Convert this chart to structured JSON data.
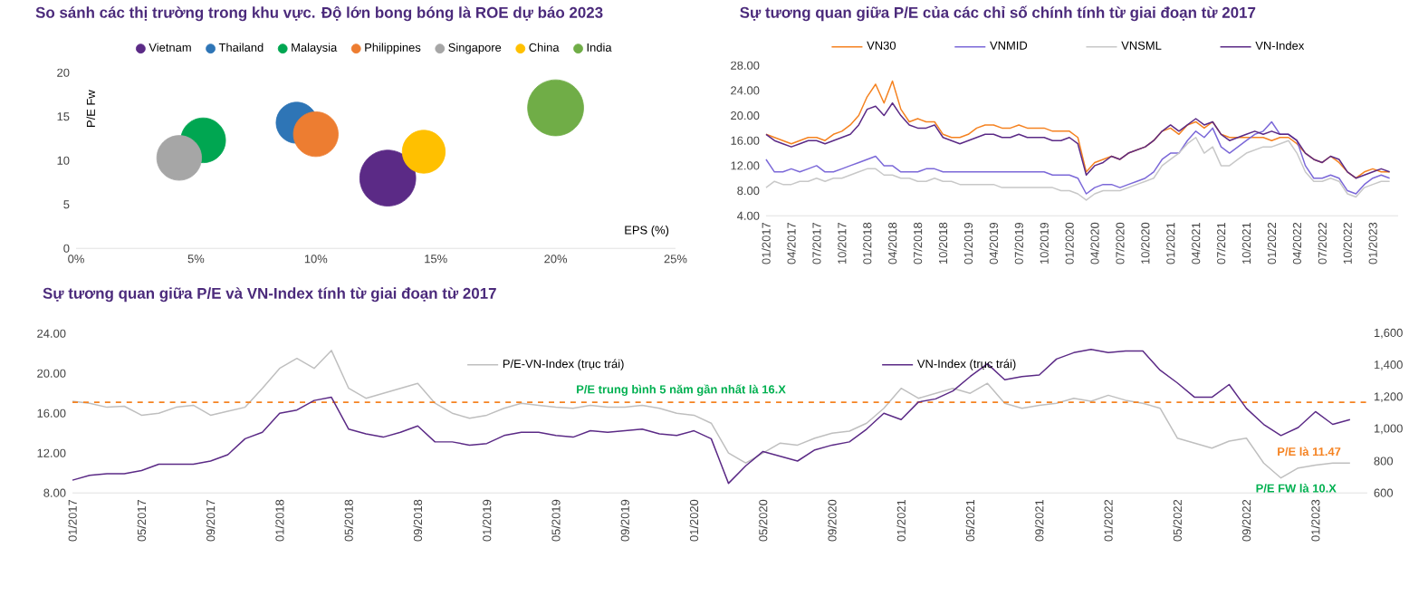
{
  "chart_data": [
    {
      "type": "bubble",
      "title": "So sánh các thị trường trong khu vực. Độ lớn bong bóng là ROE dự báo 2023",
      "xlabel": "EPS (%)",
      "ylabel": "P/E Fw",
      "xlim": [
        0,
        25
      ],
      "ylim": [
        0,
        20
      ],
      "xticks": [
        {
          "value": 0,
          "label": "0%"
        },
        {
          "value": 5,
          "label": "5%"
        },
        {
          "value": 10,
          "label": "10%"
        },
        {
          "value": 15,
          "label": "15%"
        },
        {
          "value": 20,
          "label": "20%"
        },
        {
          "value": 25,
          "label": "25%"
        }
      ],
      "yticks": [
        0,
        5,
        10,
        15,
        20
      ],
      "legend": "top",
      "series": [
        {
          "name": "Vietnam",
          "color": "#5b2a86",
          "x": [
            13
          ],
          "values": [
            8
          ],
          "sizes": [
            1
          ]
        },
        {
          "name": "Thailand",
          "color": "#2e75b6",
          "x": [
            9.2
          ],
          "values": [
            14.3
          ],
          "sizes": [
            0.54
          ]
        },
        {
          "name": "Malaysia",
          "color": "#00a651",
          "x": [
            5.3
          ],
          "values": [
            12.3
          ],
          "sizes": [
            0.64
          ]
        },
        {
          "name": "Philippines",
          "color": "#ed7d31",
          "x": [
            10
          ],
          "values": [
            13
          ],
          "sizes": [
            0.64
          ]
        },
        {
          "name": "Singapore",
          "color": "#a6a6a6",
          "x": [
            4.3
          ],
          "values": [
            10.3
          ],
          "sizes": [
            0.64
          ]
        },
        {
          "name": "China",
          "color": "#ffc000",
          "x": [
            14.5
          ],
          "values": [
            11
          ],
          "sizes": [
            0.59
          ]
        },
        {
          "name": "India",
          "color": "#70ad47",
          "x": [
            20
          ],
          "values": [
            16
          ],
          "sizes": [
            1
          ]
        }
      ]
    },
    {
      "type": "line",
      "title": "Sự tương quan giữa P/E của các chỉ số chính tính từ giai đoạn từ 2017",
      "xlim": [
        "2017-01",
        "2023-04"
      ],
      "ylim": [
        4,
        28
      ],
      "legend": "top",
      "yticks": [
        {
          "value": 4,
          "label": "4.00"
        },
        {
          "value": 8,
          "label": "8.00"
        },
        {
          "value": 12,
          "label": "12.00"
        },
        {
          "value": 16,
          "label": "16.00"
        },
        {
          "value": 20,
          "label": "20.00"
        },
        {
          "value": 24,
          "label": "24.00"
        },
        {
          "value": 28,
          "label": "28.00"
        }
      ],
      "xticks": [
        {
          "value": "2017-01",
          "label": "01/2017"
        },
        {
          "value": "2017-04",
          "label": "04/2017"
        },
        {
          "value": "2017-07",
          "label": "07/2017"
        },
        {
          "value": "2017-10",
          "label": "10/2017"
        },
        {
          "value": "2018-01",
          "label": "01/2018"
        },
        {
          "value": "2018-04",
          "label": "04/2018"
        },
        {
          "value": "2018-07",
          "label": "07/2018"
        },
        {
          "value": "2018-10",
          "label": "10/2018"
        },
        {
          "value": "2019-01",
          "label": "01/2019"
        },
        {
          "value": "2019-04",
          "label": "04/2019"
        },
        {
          "value": "2019-07",
          "label": "07/2019"
        },
        {
          "value": "2019-10",
          "label": "10/2019"
        },
        {
          "value": "2020-01",
          "label": "01/2020"
        },
        {
          "value": "2020-04",
          "label": "04/2020"
        },
        {
          "value": "2020-07",
          "label": "07/2020"
        },
        {
          "value": "2020-10",
          "label": "10/2020"
        },
        {
          "value": "2021-01",
          "label": "01/2021"
        },
        {
          "value": "2021-04",
          "label": "04/2021"
        },
        {
          "value": "2021-07",
          "label": "07/2021"
        },
        {
          "value": "2021-10",
          "label": "10/2021"
        },
        {
          "value": "2022-01",
          "label": "01/2022"
        },
        {
          "value": "2022-04",
          "label": "04/2022"
        },
        {
          "value": "2022-07",
          "label": "07/2022"
        },
        {
          "value": "2022-10",
          "label": "10/2022"
        },
        {
          "value": "2023-01",
          "label": "01/2023"
        }
      ],
      "x": [
        "2017-01",
        "2017-02",
        "2017-03",
        "2017-04",
        "2017-05",
        "2017-06",
        "2017-07",
        "2017-08",
        "2017-09",
        "2017-10",
        "2017-11",
        "2017-12",
        "2018-01",
        "2018-02",
        "2018-03",
        "2018-04",
        "2018-05",
        "2018-06",
        "2018-07",
        "2018-08",
        "2018-09",
        "2018-10",
        "2018-11",
        "2018-12",
        "2019-01",
        "2019-02",
        "2019-03",
        "2019-04",
        "2019-05",
        "2019-06",
        "2019-07",
        "2019-08",
        "2019-09",
        "2019-10",
        "2019-11",
        "2019-12",
        "2020-01",
        "2020-02",
        "2020-03",
        "2020-04",
        "2020-05",
        "2020-06",
        "2020-07",
        "2020-08",
        "2020-09",
        "2020-10",
        "2020-11",
        "2020-12",
        "2021-01",
        "2021-02",
        "2021-03",
        "2021-04",
        "2021-05",
        "2021-06",
        "2021-07",
        "2021-08",
        "2021-09",
        "2021-10",
        "2021-11",
        "2021-12",
        "2022-01",
        "2022-02",
        "2022-03",
        "2022-04",
        "2022-05",
        "2022-06",
        "2022-07",
        "2022-08",
        "2022-09",
        "2022-10",
        "2022-11",
        "2022-12",
        "2023-01",
        "2023-02",
        "2023-03"
      ],
      "series": [
        {
          "name": "VN30",
          "color": "#f58220",
          "values": [
            17,
            16.5,
            16,
            15.5,
            16,
            16.5,
            16.5,
            16,
            17,
            17.5,
            18.5,
            20,
            23,
            25,
            22,
            25.5,
            21,
            19,
            19.5,
            19,
            19,
            17,
            16.5,
            16.5,
            17,
            18,
            18.5,
            18.5,
            18,
            18,
            18.5,
            18,
            18,
            18,
            17.5,
            17.5,
            17.5,
            16.5,
            11,
            12.5,
            13,
            13.5,
            13,
            14,
            14.5,
            15,
            16,
            17.5,
            18,
            17,
            18.5,
            19,
            18,
            19,
            17,
            16.5,
            16.5,
            16.5,
            16.5,
            16.5,
            16,
            16.5,
            16.5,
            15.5,
            14,
            13,
            12.5,
            13.5,
            12.5,
            11,
            10,
            11,
            11.5,
            11,
            11
          ]
        },
        {
          "name": "VNMID",
          "color": "#7b68d8",
          "values": [
            13,
            11,
            11,
            11.5,
            11,
            11.5,
            12,
            11,
            11,
            11.5,
            12,
            12.5,
            13,
            13.5,
            12,
            12,
            11,
            11,
            11,
            11.5,
            11.5,
            11,
            11,
            11,
            11,
            11,
            11,
            11,
            11,
            11,
            11,
            11,
            11,
            11,
            10.5,
            10.5,
            10.5,
            10,
            7.5,
            8.5,
            9,
            9,
            8.5,
            9,
            9.5,
            10,
            11,
            13,
            14,
            14,
            16,
            17.5,
            16.5,
            18,
            15,
            14,
            15,
            16,
            17,
            17.5,
            19,
            17,
            17,
            16,
            12,
            10,
            10,
            10.5,
            10,
            8,
            7.5,
            9,
            10,
            10.5,
            10
          ]
        },
        {
          "name": "VNSML",
          "color": "#c8c8c8",
          "values": [
            8.5,
            9.5,
            9,
            9,
            9.5,
            9.5,
            10,
            9.5,
            10,
            10,
            10.5,
            11,
            11.5,
            11.5,
            10.5,
            10.5,
            10,
            10,
            9.5,
            9.5,
            10,
            9.5,
            9.5,
            9,
            9,
            9,
            9,
            9,
            8.5,
            8.5,
            8.5,
            8.5,
            8.5,
            8.5,
            8.5,
            8,
            8,
            7.5,
            6.5,
            7.5,
            8,
            8,
            8,
            8.5,
            9,
            9.5,
            10,
            12,
            13,
            14,
            15.5,
            16.5,
            14,
            15,
            12,
            12,
            13,
            14,
            14.5,
            15,
            15,
            15.5,
            16,
            14,
            11,
            9.5,
            9.5,
            10,
            9.5,
            7.5,
            7,
            8.5,
            9,
            9.5,
            9.5
          ]
        },
        {
          "name": "VN-Index",
          "color": "#5b2a86",
          "values": [
            17,
            16,
            15.5,
            15,
            15.5,
            16,
            16,
            15.5,
            16,
            16.5,
            17,
            18.5,
            21,
            21.5,
            20,
            22,
            20,
            18.5,
            18,
            18,
            18.5,
            16.5,
            16,
            15.5,
            16,
            16.5,
            17,
            17,
            16.5,
            16.5,
            17,
            16.5,
            16.5,
            16.5,
            16,
            16,
            16.5,
            15.5,
            10.5,
            12,
            12.5,
            13.5,
            13,
            14,
            14.5,
            15,
            16,
            17.5,
            18.5,
            17.5,
            18.5,
            19.5,
            18.5,
            19,
            17,
            16,
            16.5,
            17,
            17.5,
            17,
            17.5,
            17,
            17,
            16,
            14,
            13,
            12.5,
            13.5,
            13,
            11,
            10,
            10.5,
            11,
            11.5,
            11
          ]
        }
      ]
    },
    {
      "type": "line",
      "title": "Sự tương quan giữa P/E và VN-Index tính từ giai đoạn từ 2017",
      "xlim": [
        "2017-01",
        "2023-04"
      ],
      "ylim": [
        8,
        24
      ],
      "y2lim": [
        600,
        1600
      ],
      "legend": "top",
      "yticks": [
        {
          "value": 8,
          "label": "8.00"
        },
        {
          "value": 12,
          "label": "12.00"
        },
        {
          "value": 16,
          "label": "16.00"
        },
        {
          "value": 20,
          "label": "20.00"
        },
        {
          "value": 24,
          "label": "24.00"
        }
      ],
      "y2ticks": [
        600,
        800,
        {
          "value": 1000,
          "label": "1,000"
        },
        {
          "value": 1200,
          "label": "1,200"
        },
        {
          "value": 1400,
          "label": "1,400"
        },
        {
          "value": 1600,
          "label": "1,600"
        }
      ],
      "xticks": [
        {
          "value": "2017-01",
          "label": "01/2017"
        },
        {
          "value": "2017-05",
          "label": "05/2017"
        },
        {
          "value": "2017-09",
          "label": "09/2017"
        },
        {
          "value": "2018-01",
          "label": "01/2018"
        },
        {
          "value": "2018-05",
          "label": "05/2018"
        },
        {
          "value": "2018-09",
          "label": "09/2018"
        },
        {
          "value": "2019-01",
          "label": "01/2019"
        },
        {
          "value": "2019-05",
          "label": "05/2019"
        },
        {
          "value": "2019-09",
          "label": "09/2019"
        },
        {
          "value": "2020-01",
          "label": "01/2020"
        },
        {
          "value": "2020-05",
          "label": "05/2020"
        },
        {
          "value": "2020-09",
          "label": "09/2020"
        },
        {
          "value": "2021-01",
          "label": "01/2021"
        },
        {
          "value": "2021-05",
          "label": "05/2021"
        },
        {
          "value": "2021-09",
          "label": "09/2021"
        },
        {
          "value": "2022-01",
          "label": "01/2022"
        },
        {
          "value": "2022-05",
          "label": "05/2022"
        },
        {
          "value": "2022-09",
          "label": "09/2022"
        },
        {
          "value": "2023-01",
          "label": "01/2023"
        }
      ],
      "x": [
        "2017-01",
        "2017-02",
        "2017-03",
        "2017-04",
        "2017-05",
        "2017-06",
        "2017-07",
        "2017-08",
        "2017-09",
        "2017-10",
        "2017-11",
        "2017-12",
        "2018-01",
        "2018-02",
        "2018-03",
        "2018-04",
        "2018-05",
        "2018-06",
        "2018-07",
        "2018-08",
        "2018-09",
        "2018-10",
        "2018-11",
        "2018-12",
        "2019-01",
        "2019-02",
        "2019-03",
        "2019-04",
        "2019-05",
        "2019-06",
        "2019-07",
        "2019-08",
        "2019-09",
        "2019-10",
        "2019-11",
        "2019-12",
        "2020-01",
        "2020-02",
        "2020-03",
        "2020-04",
        "2020-05",
        "2020-06",
        "2020-07",
        "2020-08",
        "2020-09",
        "2020-10",
        "2020-11",
        "2020-12",
        "2021-01",
        "2021-02",
        "2021-03",
        "2021-04",
        "2021-05",
        "2021-06",
        "2021-07",
        "2021-08",
        "2021-09",
        "2021-10",
        "2021-11",
        "2021-12",
        "2022-01",
        "2022-02",
        "2022-03",
        "2022-04",
        "2022-05",
        "2022-06",
        "2022-07",
        "2022-08",
        "2022-09",
        "2022-10",
        "2022-11",
        "2022-12",
        "2023-01",
        "2023-02",
        "2023-03"
      ],
      "series": [
        {
          "name": "P/E-VN-Index (trục trái)",
          "color": "#bfbfbf",
          "values": [
            17.2,
            17.0,
            16.6,
            16.7,
            15.8,
            16.0,
            16.6,
            16.8,
            15.8,
            16.2,
            16.6,
            18.5,
            20.5,
            21.5,
            20.5,
            22.3,
            18.5,
            17.5,
            18.0,
            18.5,
            19.0,
            17.0,
            16.0,
            15.5,
            15.8,
            16.5,
            17.0,
            16.8,
            16.6,
            16.5,
            16.8,
            16.6,
            16.6,
            16.8,
            16.5,
            16.0,
            15.8,
            15.0,
            12.0,
            11.0,
            12.0,
            13.0,
            12.8,
            13.5,
            14.0,
            14.2,
            15.0,
            16.5,
            18.5,
            17.5,
            18.0,
            18.5,
            18.0,
            19.0,
            17.0,
            16.5,
            16.8,
            17.0,
            17.5,
            17.2,
            17.8,
            17.3,
            17.0,
            16.5,
            13.5,
            13.0,
            12.5,
            13.2,
            13.5,
            11.0,
            9.5,
            10.5,
            10.8,
            11.0,
            11.0
          ]
        },
        {
          "name": "VN-Index (trục trái)",
          "color": "#5b2a86",
          "axis": "y2",
          "values": [
            680,
            710,
            720,
            720,
            740,
            780,
            780,
            780,
            800,
            840,
            940,
            980,
            1100,
            1120,
            1180,
            1200,
            1000,
            970,
            950,
            980,
            1020,
            920,
            920,
            900,
            910,
            960,
            980,
            980,
            960,
            950,
            990,
            980,
            990,
            1000,
            970,
            960,
            990,
            940,
            660,
            770,
            860,
            830,
            800,
            870,
            900,
            920,
            1000,
            1100,
            1060,
            1170,
            1190,
            1240,
            1330,
            1410,
            1310,
            1330,
            1340,
            1440,
            1480,
            1500,
            1480,
            1490,
            1490,
            1370,
            1290,
            1200,
            1200,
            1280,
            1130,
            1030,
            960,
            1010,
            1110,
            1030,
            1060
          ]
        }
      ],
      "ref_lines": [
        {
          "axis": "y",
          "value": 17.1,
          "label": "P/E trung bình 5 năm gần nhất là 16.X",
          "color": "#f58220",
          "line_style": "dashed"
        }
      ],
      "annotations": [
        "P/E là 11.47",
        "P/E FW là 10.X"
      ]
    }
  ]
}
